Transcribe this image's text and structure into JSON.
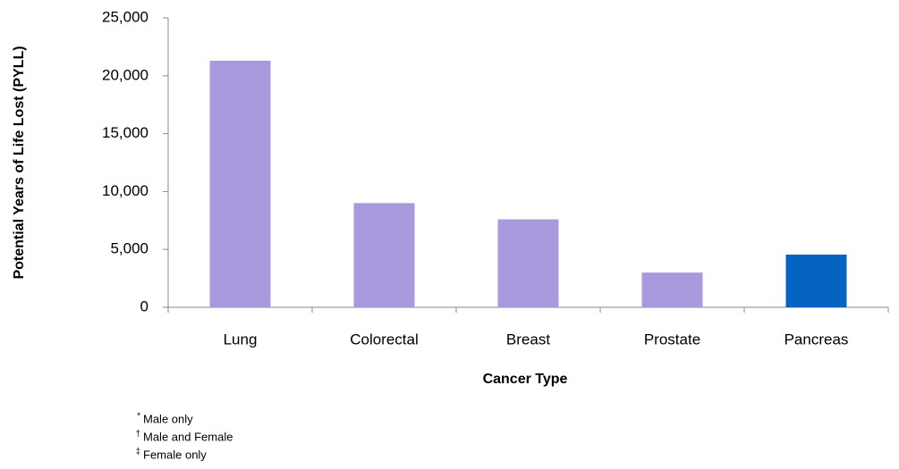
{
  "chart_data": {
    "type": "bar",
    "x_label": "Cancer Type",
    "y_label": "Potential Years of Life Lost (PYLL)",
    "categories": [
      "Lung",
      "Colorectal",
      "Breast",
      "Prostate",
      "Pancreas"
    ],
    "values": [
      21300,
      9000,
      7600,
      3000,
      4550
    ],
    "colors": [
      "#ab99dd",
      "#ab99dd",
      "#ab99dd",
      "#ab99dd",
      "#0563c1"
    ],
    "ylim": [
      0,
      25000
    ],
    "yticks": [
      0,
      {
        "value": 5000,
        "label": "5,000"
      },
      {
        "value": 10000,
        "label": "10,000"
      },
      {
        "value": 15000,
        "label": "15,000"
      },
      {
        "value": 20000,
        "label": "20,000"
      },
      {
        "value": 25000,
        "label": "25,000"
      }
    ],
    "footnotes": [
      {
        "symbol": "*",
        "text": "Male only"
      },
      {
        "symbol": "†",
        "text": "Male and Female"
      },
      {
        "symbol": "‡",
        "text": "Female only"
      }
    ]
  }
}
